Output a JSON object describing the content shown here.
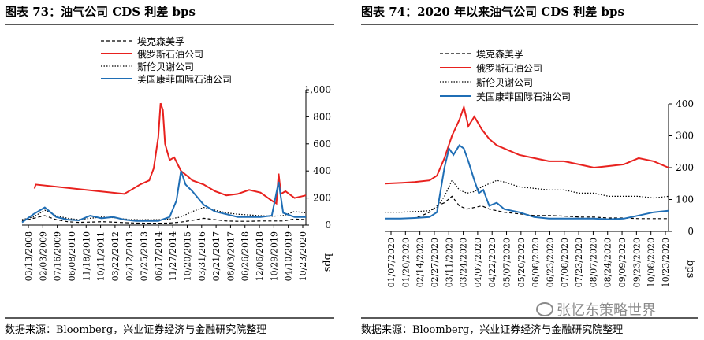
{
  "left": {
    "title": "图表 73：油气公司 CDS 利差  bps",
    "source": "数据来源：Bloomberg，兴业证券经济与金融研究院整理"
  },
  "right": {
    "title": "图表 74：2020 年以来油气公司 CDS 利差  bps",
    "source": "数据来源：Bloomberg，兴业证券经济与金融研究院整理"
  },
  "watermark": "张忆东策略世界",
  "colors": {
    "exxon": "#000000",
    "rosneft": "#e8211e",
    "chevron": "#000000",
    "conoco": "#1f6eb5"
  },
  "chart_data": [
    {
      "type": "line",
      "ylabel": "bps",
      "ylim": [
        0,
        1000
      ],
      "yticks": [
        "0",
        "200",
        "400",
        "600",
        "800",
        "1,000"
      ],
      "xticks": [
        "03/13/2008",
        "02/03/2009",
        "07/16/2009",
        "06/08/2010",
        "11/18/2010",
        "10/11/2011",
        "03/22/2012",
        "02/12/2013",
        "07/25/2013",
        "06/17/2014",
        "11/27/2014",
        "10/20/2015",
        "03/31/2016",
        "02/21/2017",
        "08/03/2017",
        "06/26/2018",
        "12/06/2018",
        "10/29/2019",
        "04/10/2019",
        "10/23/2020"
      ],
      "series": [
        {
          "name": "埃克森美孚",
          "style": "dashed",
          "x": [
            0,
            0.5,
            1,
            1.5,
            2,
            2.5,
            3,
            3.5,
            4,
            4.5,
            5,
            5.5,
            6,
            6.5,
            7,
            7.5,
            8,
            8.5,
            9,
            9.5,
            10,
            10.5,
            11,
            11.5,
            12,
            12.5
          ],
          "values": [
            30,
            50,
            70,
            40,
            25,
            20,
            22,
            25,
            22,
            18,
            15,
            14,
            14,
            15,
            22,
            35,
            50,
            40,
            30,
            28,
            28,
            30,
            30,
            30,
            45,
            40
          ]
        },
        {
          "name": "俄罗斯石油公司",
          "style": "solid",
          "x": [
            0.55,
            0.6,
            4.5,
            4.8,
            5.2,
            5.6,
            5.8,
            6.0,
            6.1,
            6.2,
            6.3,
            6.5,
            6.7,
            7.0,
            7.3,
            7.5,
            8.0,
            8.5,
            9.0,
            9.5,
            10.0,
            10.5,
            11.0,
            11.2,
            11.3,
            11.4,
            11.6,
            12.0,
            12.5
          ],
          "values": [
            270,
            300,
            230,
            260,
            300,
            330,
            420,
            650,
            900,
            850,
            600,
            480,
            500,
            400,
            360,
            330,
            300,
            250,
            220,
            230,
            260,
            240,
            180,
            160,
            380,
            230,
            250,
            200,
            220
          ]
        },
        {
          "name": "斯伦贝谢公司",
          "style": "dotted",
          "x": [
            0,
            0.5,
            1,
            1.5,
            2,
            2.5,
            3,
            3.5,
            4,
            4.5,
            5,
            5.5,
            6,
            6.5,
            7,
            7.5,
            8,
            8.5,
            9,
            9.5,
            10,
            10.5,
            11,
            11.5,
            12,
            12.5
          ],
          "values": [
            40,
            60,
            110,
            70,
            50,
            40,
            50,
            60,
            55,
            45,
            40,
            40,
            40,
            45,
            60,
            100,
            130,
            110,
            90,
            80,
            75,
            70,
            65,
            70,
            100,
            90
          ]
        },
        {
          "name": "美国康菲国际石油公司",
          "style": "solid",
          "x": [
            0,
            0.5,
            1,
            1.5,
            2,
            2.5,
            3,
            3.5,
            4,
            4.5,
            5,
            5.5,
            6,
            6.5,
            6.8,
            7.0,
            7.2,
            7.5,
            8,
            8.5,
            9,
            9.5,
            10,
            10.5,
            11,
            11.3,
            11.5,
            12,
            12.5
          ],
          "values": [
            20,
            80,
            130,
            60,
            40,
            35,
            70,
            50,
            60,
            40,
            30,
            30,
            30,
            60,
            180,
            400,
            300,
            250,
            150,
            100,
            80,
            60,
            60,
            60,
            70,
            320,
            90,
            60,
            60
          ]
        }
      ]
    },
    {
      "type": "line",
      "ylabel": "bps",
      "ylim": [
        0,
        400
      ],
      "yticks": [
        "0",
        "100",
        "200",
        "300",
        "400"
      ],
      "xticks": [
        "01/07/2020",
        "01/20/2020",
        "02/14/2020",
        "02/27/2020",
        "03/11/2020",
        "03/24/2020",
        "04/07/2020",
        "04/22/2020",
        "05/07/2020",
        "05/20/2020",
        "06/08/2020",
        "06/23/2020",
        "07/08/2020",
        "07/23/2020",
        "08/07/2020",
        "08/24/2020",
        "09/09/2020",
        "09/23/2020",
        "10/08/2020",
        "10/23/2020"
      ],
      "series": [
        {
          "name": "埃克森美孚",
          "style": "dashed",
          "x": [
            0,
            1,
            2,
            2.5,
            3,
            3.5,
            4,
            4.5,
            5,
            5.5,
            6,
            6.5,
            7,
            8,
            9,
            10,
            11,
            12,
            13,
            14,
            15,
            16,
            17,
            18,
            19
          ],
          "values": [
            40,
            40,
            42,
            50,
            60,
            80,
            90,
            110,
            80,
            70,
            75,
            80,
            70,
            60,
            55,
            50,
            50,
            48,
            45,
            45,
            42,
            42,
            40,
            40,
            40
          ]
        },
        {
          "name": "俄罗斯石油公司",
          "style": "solid",
          "x": [
            0,
            1,
            2,
            3,
            3.5,
            4,
            4.5,
            5,
            5.3,
            5.6,
            6,
            6.5,
            7,
            7.5,
            8,
            9,
            10,
            11,
            12,
            13,
            14,
            15,
            16,
            17,
            18,
            19
          ],
          "values": [
            150,
            152,
            155,
            160,
            175,
            230,
            300,
            350,
            390,
            330,
            360,
            320,
            290,
            270,
            260,
            240,
            230,
            220,
            220,
            210,
            200,
            205,
            210,
            230,
            220,
            200
          ]
        },
        {
          "name": "斯伦贝谢公司",
          "style": "dotted",
          "x": [
            0,
            1,
            2,
            3,
            3.5,
            4,
            4.5,
            5,
            5.5,
            6,
            6.5,
            7,
            7.5,
            8,
            9,
            10,
            11,
            12,
            13,
            14,
            15,
            16,
            17,
            18,
            19
          ],
          "values": [
            60,
            60,
            62,
            65,
            75,
            110,
            160,
            130,
            120,
            125,
            140,
            150,
            160,
            155,
            140,
            135,
            130,
            130,
            120,
            120,
            110,
            110,
            110,
            105,
            110
          ]
        },
        {
          "name": "美国康菲国际石油公司",
          "style": "solid",
          "x": [
            0,
            1,
            2,
            3,
            3.5,
            4,
            4.3,
            4.6,
            5,
            5.3,
            5.6,
            6,
            6.3,
            6.6,
            7,
            7.5,
            8,
            9,
            10,
            11,
            12,
            13,
            14,
            15,
            16,
            17,
            18,
            19
          ],
          "values": [
            40,
            40,
            42,
            45,
            60,
            200,
            260,
            240,
            270,
            260,
            220,
            160,
            120,
            130,
            80,
            90,
            70,
            60,
            45,
            40,
            40,
            40,
            40,
            38,
            40,
            50,
            60,
            65
          ]
        }
      ]
    }
  ]
}
